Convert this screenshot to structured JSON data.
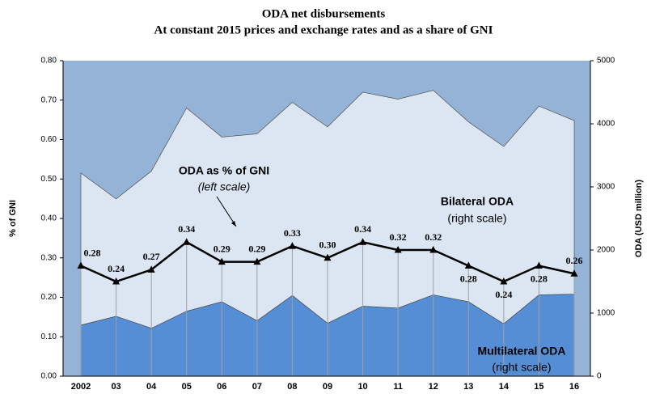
{
  "chart_data": {
    "type": "area-line",
    "title": "ODA net disbursements",
    "subtitle": "At constant 2015 prices and exchange rates and as a share of GNI",
    "y_label": "% of GNI",
    "y2_label": "ODA (USD million)",
    "categories": [
      "2002",
      "03",
      "04",
      "05",
      "06",
      "07",
      "08",
      "09",
      "10",
      "11",
      "12",
      "13",
      "14",
      "15",
      "16"
    ],
    "series": [
      {
        "name": "Multilateral ODA",
        "color": "#558ed5",
        "axis": "y2",
        "stacked": true,
        "values": [
          810,
          950,
          760,
          1030,
          1180,
          880,
          1280,
          840,
          1110,
          1080,
          1290,
          1180,
          830,
          1290,
          1300
        ]
      },
      {
        "name": "Bilateral ODA",
        "color": "#dce6f2",
        "axis": "y2",
        "stacked": true,
        "values": [
          2410,
          1860,
          2490,
          3220,
          2610,
          2960,
          3060,
          3110,
          3390,
          3310,
          3240,
          2850,
          2810,
          2990,
          2750
        ]
      },
      {
        "name": "ODA as % of GNI",
        "color": "#000000",
        "axis": "y",
        "values": [
          0.28,
          0.24,
          0.27,
          0.34,
          0.29,
          0.29,
          0.33,
          0.3,
          0.34,
          0.32,
          0.32,
          0.28,
          0.24,
          0.28,
          0.26
        ],
        "value_labels": [
          "0.28",
          "0.24",
          "0.27",
          "0.34",
          "0.29",
          "0.29",
          "0.33",
          "0.30",
          "0.34",
          "0.32",
          "0.32",
          "0.28",
          "0.24",
          "0.28",
          "0.26"
        ]
      }
    ],
    "annotations": [
      "(left scale)",
      "(right scale)",
      "(right scale)"
    ],
    "plot_background": "#95b3d7",
    "ylim": [
      0,
      0.8
    ],
    "yticks": [
      {
        "value": 0,
        "label": "0.00"
      },
      {
        "value": 0.1,
        "label": "0.10"
      },
      {
        "value": 0.2,
        "label": "0.20"
      },
      {
        "value": 0.3,
        "label": "0.30"
      },
      {
        "value": 0.4,
        "label": "0.40"
      },
      {
        "value": 0.5,
        "label": "0.50"
      },
      {
        "value": 0.6,
        "label": "0.60"
      },
      {
        "value": 0.7,
        "label": "0.70"
      },
      {
        "value": 0.8,
        "label": "0.80"
      }
    ],
    "y2lim": [
      0,
      5000
    ],
    "y2ticks": [
      0,
      1000,
      2000,
      3000,
      4000,
      5000
    ]
  }
}
